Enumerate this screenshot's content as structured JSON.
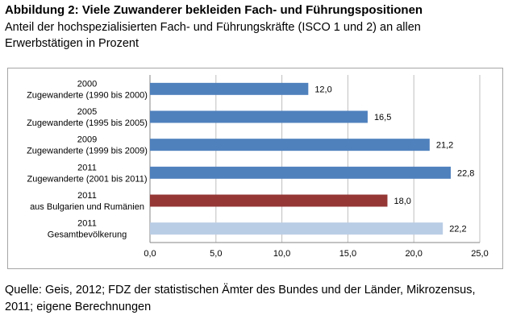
{
  "header": {
    "title": "Abbildung 2: Viele Zuwanderer bekleiden Fach- und Führungspositionen",
    "subtitle": "Anteil der hochspezialisierten Fach- und Führungskräfte (ISCO 1 und 2) an allen Erwerbstätigen in Prozent"
  },
  "footer": {
    "source": "Quelle: Geis, 2012; FDZ der statistischen Ämter des Bundes und der Länder, Mikrozensus, 2011; eigene Berechnungen"
  },
  "chart_data": {
    "type": "bar",
    "orientation": "horizontal",
    "categories": [
      [
        "2000",
        "Zugewanderte (1990 bis 2000)"
      ],
      [
        "2005",
        "Zugewanderte (1995 bis 2005)"
      ],
      [
        "2009",
        "Zugewanderte (1999 bis 2009)"
      ],
      [
        "2011",
        "Zugewanderte (2001 bis 2011)"
      ],
      [
        "2011",
        "aus Bulgarien und Rumänien"
      ],
      [
        "2011",
        "Gesamtbevölkerung"
      ]
    ],
    "values": [
      12.0,
      16.5,
      21.2,
      22.8,
      18.0,
      22.2
    ],
    "value_labels": [
      "12,0",
      "16,5",
      "21,2",
      "22,8",
      "18,0",
      "22,2"
    ],
    "colors": [
      "#4f81bd",
      "#4f81bd",
      "#4f81bd",
      "#4f81bd",
      "#953735",
      "#b9cde5"
    ],
    "xlim": [
      0,
      25
    ],
    "xticks": [
      0,
      5,
      10,
      15,
      20,
      25
    ],
    "xtick_labels": [
      "0,0",
      "5,0",
      "10,0",
      "15,0",
      "20,0",
      "25,0"
    ],
    "grid": "vertical",
    "legend": "none"
  }
}
